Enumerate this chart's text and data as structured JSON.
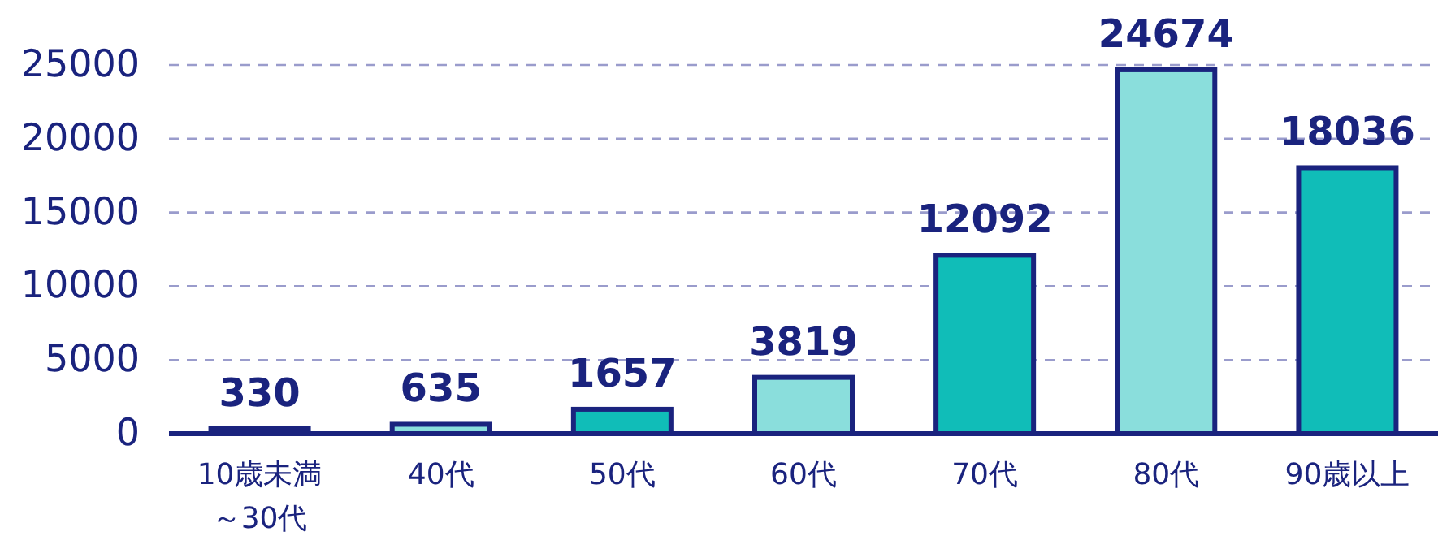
{
  "chart_data": {
    "type": "bar",
    "categories": [
      "10歳未満～30代",
      "40代",
      "50代",
      "60代",
      "70代",
      "80代",
      "90歳以上"
    ],
    "values": [
      330,
      635,
      1657,
      3819,
      12092,
      24674,
      18036
    ],
    "colors": [
      "#10bdb8",
      "#8adedc",
      "#10bdb8",
      "#8adedc",
      "#10bdb8",
      "#8adedc",
      "#10bdb8"
    ],
    "ylim": [
      0,
      25000
    ],
    "yticks": [
      0,
      5000,
      10000,
      15000,
      20000,
      25000
    ],
    "grid": "y",
    "data_labels": true
  }
}
